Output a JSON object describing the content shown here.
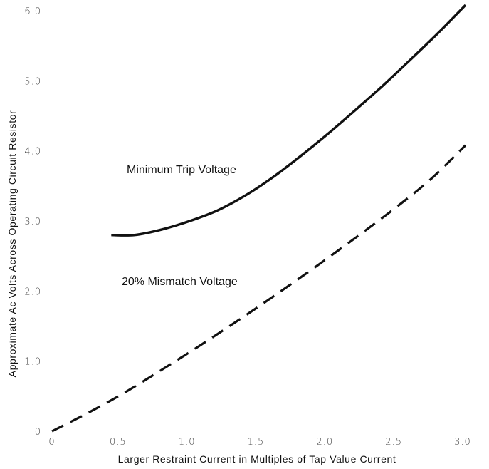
{
  "chart_data": {
    "type": "line",
    "xlabel": "Larger Restraint Current in Multiples of Tap Value Current",
    "ylabel": "Approximate Ac Volts Across Operating Circuit Resistor",
    "xlim": [
      0,
      3.0
    ],
    "ylim": [
      0,
      6.0
    ],
    "x_ticks": [
      "0",
      "0.5",
      "1.0",
      "1.5",
      "2.0",
      "2.5",
      "3.0"
    ],
    "y_ticks": [
      "0",
      "1.0",
      "2.0",
      "3.0",
      "4.0",
      "5.0",
      "6.0"
    ],
    "grid": false,
    "series": [
      {
        "name": "Minimum Trip Voltage",
        "style": "solid",
        "color": "#111111",
        "x": [
          0.43,
          0.6,
          0.8,
          1.0,
          1.2,
          1.4,
          1.6,
          1.8,
          2.0,
          2.2,
          2.4,
          2.6,
          2.8,
          3.0
        ],
        "y": [
          2.8,
          2.8,
          2.88,
          3.0,
          3.15,
          3.36,
          3.62,
          3.92,
          4.24,
          4.58,
          4.93,
          5.3,
          5.68,
          6.08
        ]
      },
      {
        "name": "20% Mismatch Voltage",
        "style": "dashed",
        "color": "#111111",
        "x": [
          0,
          0.25,
          0.5,
          0.75,
          1.0,
          1.25,
          1.5,
          1.75,
          2.0,
          2.25,
          2.5,
          2.75,
          3.0
        ],
        "y": [
          0,
          0.25,
          0.52,
          0.82,
          1.13,
          1.45,
          1.78,
          2.12,
          2.47,
          2.83,
          3.2,
          3.6,
          4.08
        ]
      }
    ]
  }
}
